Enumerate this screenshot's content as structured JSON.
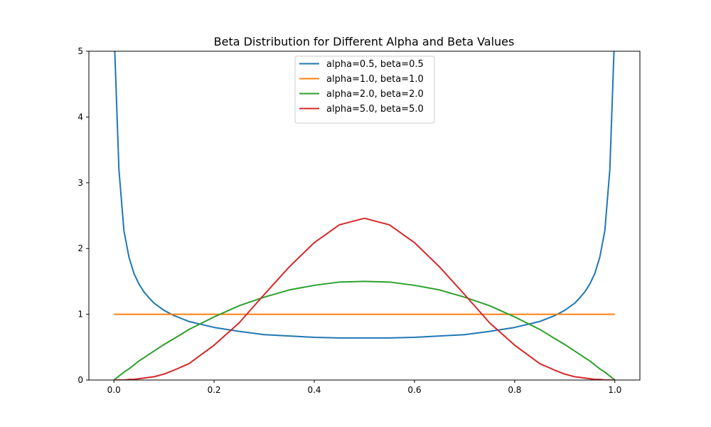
{
  "chart_data": {
    "type": "line",
    "title": "Beta Distribution for Different Alpha and Beta Values",
    "xlabel": "",
    "ylabel": "",
    "xlim": [
      -0.05,
      1.05
    ],
    "ylim": [
      0,
      5
    ],
    "x_ticks": [
      0.0,
      0.2,
      0.4,
      0.6,
      0.8,
      1.0
    ],
    "x_tick_labels": [
      "0.0",
      "0.2",
      "0.4",
      "0.6",
      "0.8",
      "1.0"
    ],
    "y_ticks": [
      0,
      1,
      2,
      3,
      4,
      5
    ],
    "y_tick_labels": [
      "0",
      "1",
      "2",
      "3",
      "4",
      "5"
    ],
    "grid": false,
    "legend_position": "top-center",
    "x": [
      0,
      0.01,
      0.02,
      0.03,
      0.04,
      0.05,
      0.06,
      0.07,
      0.08,
      0.1,
      0.12,
      0.15,
      0.2,
      0.25,
      0.3,
      0.35,
      0.4,
      0.45,
      0.5,
      0.55,
      0.6,
      0.65,
      0.7,
      0.75,
      0.8,
      0.85,
      0.88,
      0.9,
      0.92,
      0.93,
      0.94,
      0.95,
      0.96,
      0.97,
      0.98,
      0.99,
      1.0
    ],
    "series": [
      {
        "name": "alpha=0.5, beta=0.5",
        "color": "#1f77b4",
        "values": [
          null,
          3.2,
          2.27,
          1.87,
          1.62,
          1.46,
          1.34,
          1.25,
          1.17,
          1.06,
          0.98,
          0.89,
          0.8,
          0.74,
          0.69,
          0.67,
          0.65,
          0.64,
          0.64,
          0.64,
          0.65,
          0.67,
          0.69,
          0.74,
          0.8,
          0.89,
          0.98,
          1.06,
          1.17,
          1.25,
          1.34,
          1.46,
          1.62,
          1.87,
          2.27,
          3.2,
          null
        ]
      },
      {
        "name": "alpha=1.0, beta=1.0",
        "color": "#ff7f0e",
        "values": [
          1,
          1,
          1,
          1,
          1,
          1,
          1,
          1,
          1,
          1,
          1,
          1,
          1,
          1,
          1,
          1,
          1,
          1,
          1,
          1,
          1,
          1,
          1,
          1,
          1,
          1,
          1,
          1,
          1,
          1,
          1,
          1,
          1,
          1,
          1,
          1,
          1
        ]
      },
      {
        "name": "alpha=2.0, beta=2.0",
        "color": "#2ca02c",
        "values": [
          0,
          0.06,
          0.12,
          0.17,
          0.23,
          0.29,
          0.34,
          0.39,
          0.44,
          0.54,
          0.63,
          0.77,
          0.96,
          1.13,
          1.26,
          1.37,
          1.44,
          1.49,
          1.5,
          1.49,
          1.44,
          1.37,
          1.26,
          1.13,
          0.96,
          0.77,
          0.63,
          0.54,
          0.44,
          0.39,
          0.34,
          0.29,
          0.23,
          0.17,
          0.12,
          0.06,
          0
        ]
      },
      {
        "name": "alpha=5.0, beta=5.0",
        "color": "#d62728",
        "values": [
          0,
          0,
          0,
          0.01,
          0.01,
          0.02,
          0.03,
          0.04,
          0.05,
          0.09,
          0.15,
          0.25,
          0.53,
          0.87,
          1.3,
          1.72,
          2.09,
          2.36,
          2.46,
          2.36,
          2.09,
          1.72,
          1.3,
          0.87,
          0.53,
          0.25,
          0.15,
          0.09,
          0.05,
          0.04,
          0.03,
          0.02,
          0.01,
          0.01,
          0,
          0,
          0
        ]
      }
    ]
  }
}
